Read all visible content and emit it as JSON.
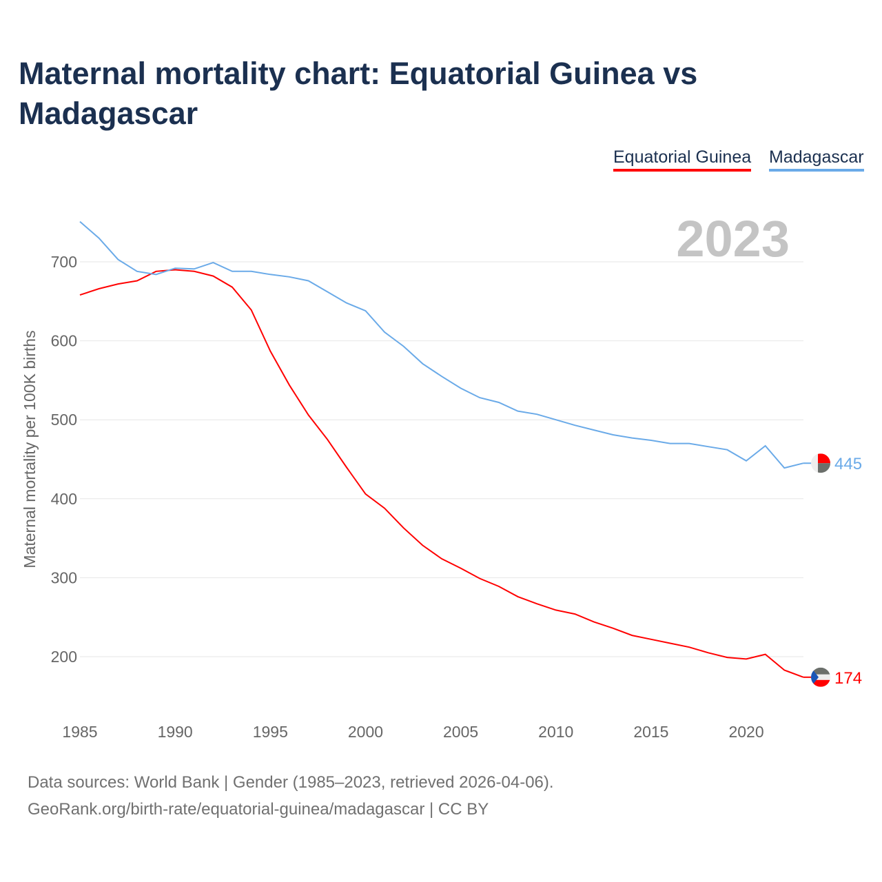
{
  "chart_data": {
    "type": "line",
    "title": "Maternal mortality chart: Equatorial Guinea vs Madagascar",
    "xlabel": "",
    "ylabel": "Maternal mortality per 100K births",
    "xlim": [
      1985,
      2023
    ],
    "ylim": [
      150,
      760
    ],
    "x_ticks": [
      "1985",
      "1990",
      "1995",
      "2000",
      "2005",
      "2010",
      "2015",
      "2020"
    ],
    "y_ticks": [
      "200",
      "300",
      "400",
      "500",
      "600",
      "700"
    ],
    "grid": true,
    "legend_position": "top-right",
    "year_label": "2023",
    "x": [
      1985,
      1986,
      1987,
      1988,
      1989,
      1990,
      1991,
      1992,
      1993,
      1994,
      1995,
      1996,
      1997,
      1998,
      1999,
      2000,
      2001,
      2002,
      2003,
      2004,
      2005,
      2006,
      2007,
      2008,
      2009,
      2010,
      2011,
      2012,
      2013,
      2014,
      2015,
      2016,
      2017,
      2018,
      2019,
      2020,
      2021,
      2022,
      2023
    ],
    "series": [
      {
        "name": "Equatorial Guinea",
        "color": "#ff0000",
        "end_label": "174",
        "values": [
          658,
          666,
          672,
          676,
          688,
          690,
          688,
          682,
          668,
          639,
          587,
          544,
          506,
          475,
          440,
          406,
          388,
          363,
          341,
          324,
          312,
          299,
          289,
          276,
          267,
          259,
          254,
          244,
          236,
          227,
          222,
          217,
          212,
          205,
          199,
          197,
          203,
          183,
          174
        ]
      },
      {
        "name": "Madagascar",
        "color": "#6aaae8",
        "end_label": "445",
        "values": [
          751,
          730,
          703,
          688,
          684,
          692,
          691,
          699,
          688,
          688,
          684,
          681,
          676,
          662,
          648,
          638,
          611,
          593,
          571,
          555,
          540,
          528,
          522,
          511,
          507,
          500,
          493,
          487,
          481,
          477,
          474,
          470,
          470,
          466,
          462,
          448,
          467,
          439,
          445
        ]
      }
    ]
  },
  "footer": {
    "line1": "Data sources: World Bank | Gender (1985–2023, retrieved 2026-04-06).",
    "line2": "GeoRank.org/birth-rate/equatorial-guinea/madagascar | CC BY"
  }
}
